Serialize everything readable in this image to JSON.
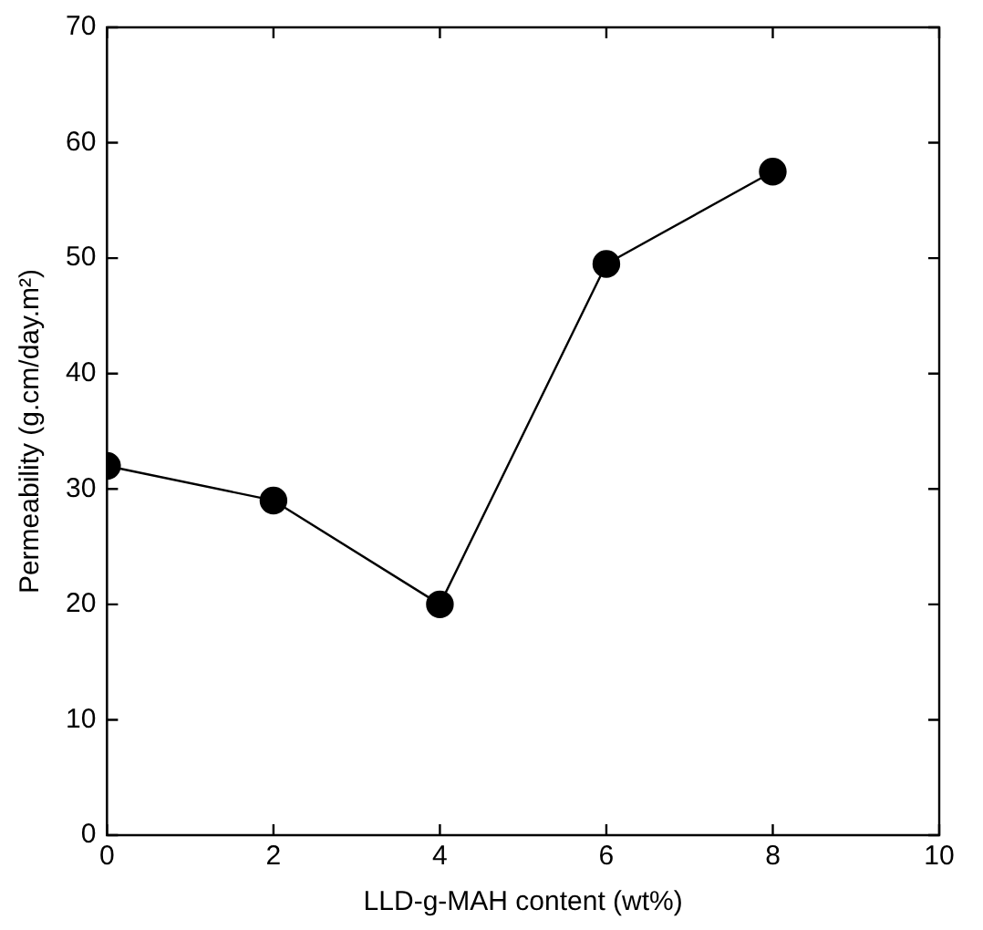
{
  "chart_data": {
    "type": "line",
    "xlabel": "LLD-g-MAH content (wt%)",
    "ylabel": "Permeability (g.cm/day.m²)",
    "x": [
      0,
      2,
      4,
      6,
      8
    ],
    "series": [
      {
        "color": "#000000",
        "values": [
          32,
          29,
          20,
          49.5,
          57.5
        ]
      }
    ],
    "xlim": [
      0,
      10
    ],
    "xticks": [
      0,
      2,
      4,
      6,
      8,
      10
    ],
    "ylim": [
      0,
      70
    ],
    "yticks": [
      0,
      10,
      20,
      30,
      40,
      50,
      60,
      70
    ],
    "marker": "circle",
    "line_style": "solid",
    "grid": false,
    "legend": false
  }
}
